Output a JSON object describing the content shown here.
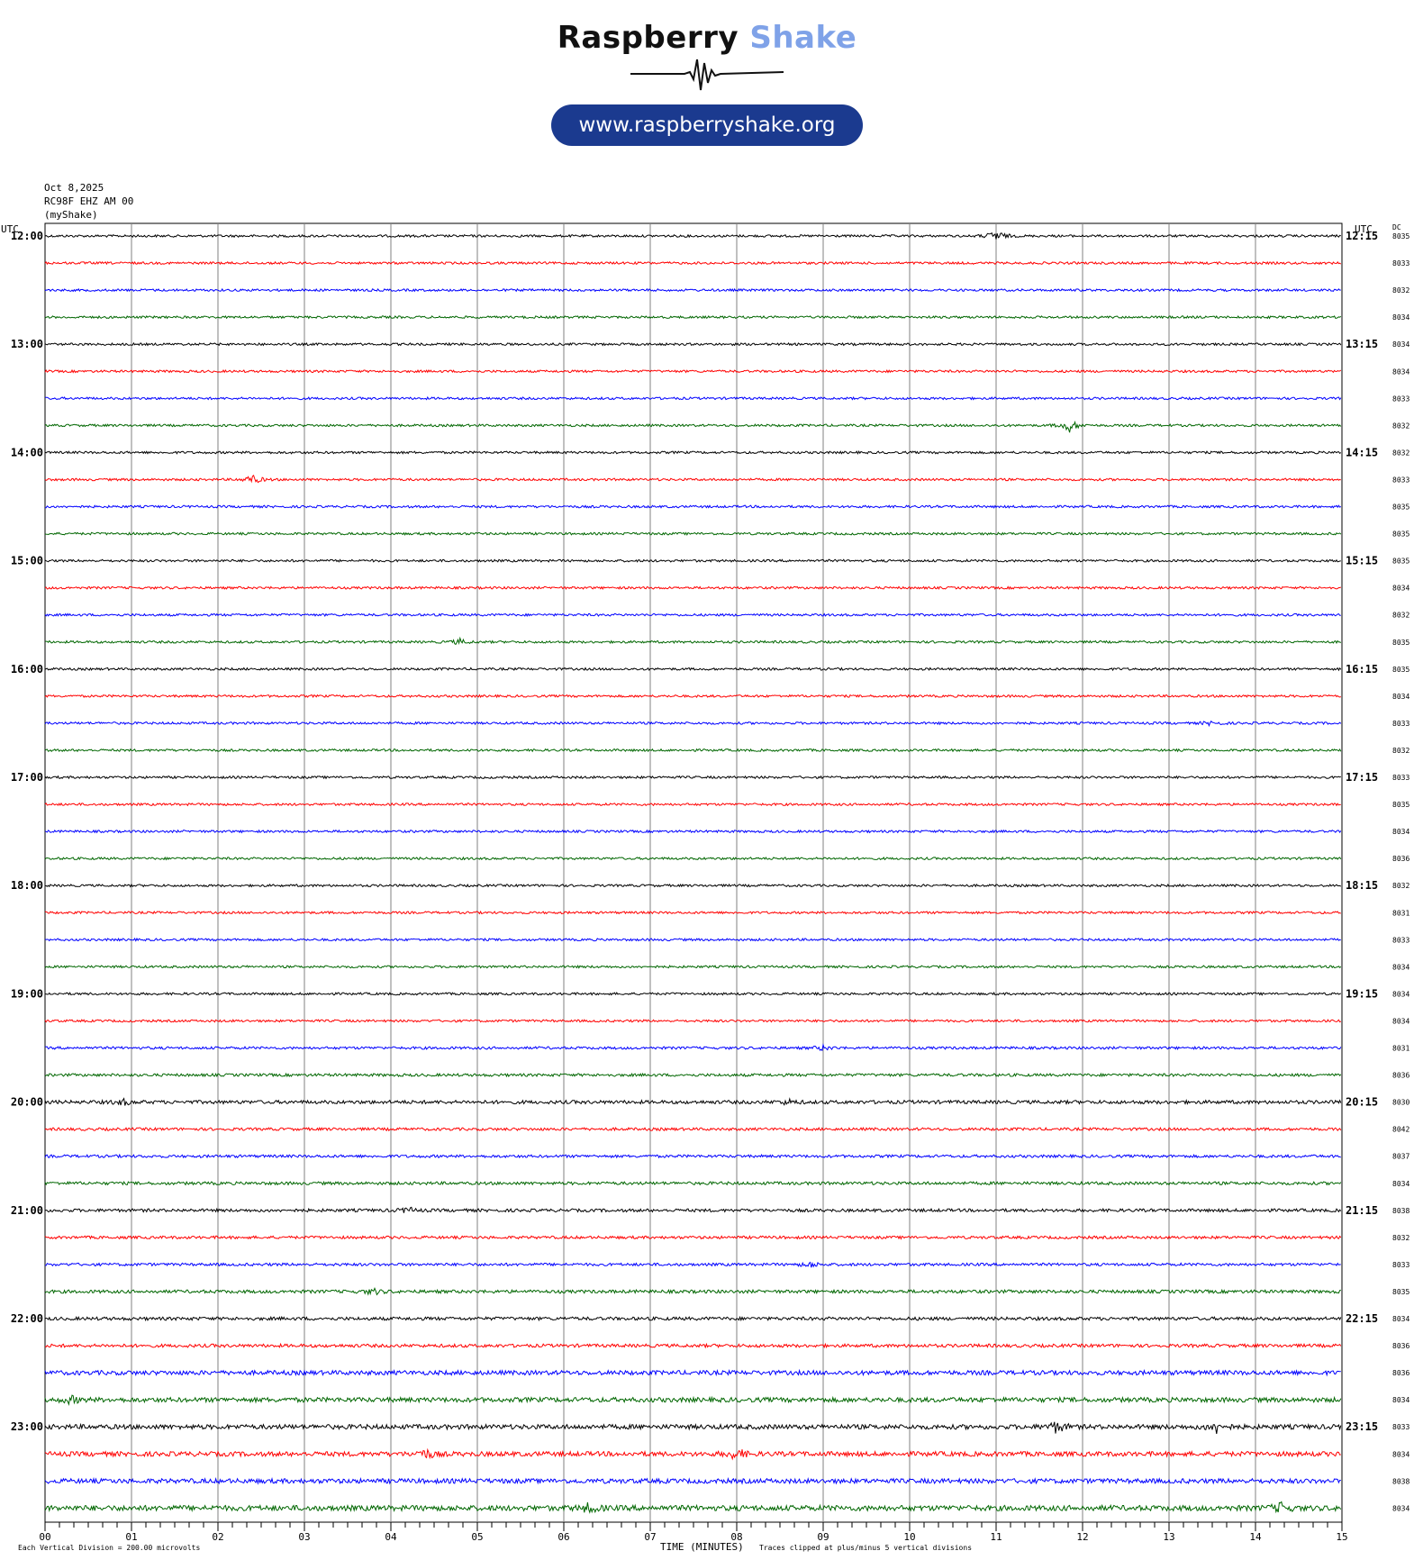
{
  "logo": {
    "brand_1": "Raspberry",
    "brand_2": "Shake",
    "url": "www.raspberryshake.org",
    "colors": {
      "brand_dark": "#111111",
      "brand_light": "#7fa2e8",
      "pill": "#1b3a8f"
    }
  },
  "header": {
    "date": "Oct 8,2025",
    "station": "RC98F EHZ AM 00",
    "network": "(myShake)"
  },
  "chart_data": {
    "type": "line",
    "description_type": "helicorder",
    "left_axis_label": "UTC",
    "right_axis_label": "UTC",
    "dc_label": "DC",
    "xlabel": "TIME (MINUTES)",
    "x_ticks": [
      "00",
      "01",
      "02",
      "03",
      "04",
      "05",
      "06",
      "07",
      "08",
      "09",
      "10",
      "11",
      "12",
      "13",
      "14",
      "15"
    ],
    "xlim": [
      0,
      15
    ],
    "left_times": [
      "12:00",
      "13:00",
      "14:00",
      "15:00",
      "16:00",
      "17:00",
      "18:00",
      "19:00",
      "20:00",
      "21:00",
      "22:00",
      "23:00"
    ],
    "right_times": [
      "12:15",
      "13:15",
      "14:15",
      "15:15",
      "16:15",
      "17:15",
      "18:15",
      "19:15",
      "20:15",
      "21:15",
      "22:15",
      "23:15"
    ],
    "trace_colors": [
      "#000000",
      "#ff0000",
      "#0000ff",
      "#006600"
    ],
    "dc_values": [
      "8035",
      "8033",
      "8032",
      "8034",
      "8034",
      "8034",
      "8033",
      "8032",
      "8032",
      "8033",
      "8035",
      "8035",
      "8035",
      "8034",
      "8032",
      "8035",
      "8035",
      "8034",
      "8033",
      "8032",
      "8033",
      "8035",
      "8034",
      "8036",
      "8032",
      "8031",
      "8033",
      "8034",
      "8034",
      "8034",
      "8031",
      "8036",
      "8030",
      "8042",
      "8037",
      "8034",
      "8038",
      "8032",
      "8033",
      "8035",
      "8034",
      "8036",
      "8036",
      "8034",
      "8033",
      "8034",
      "8038",
      "8034"
    ],
    "noise_level": [
      1.0,
      1.0,
      1.0,
      1.0,
      1.0,
      1.0,
      1.0,
      1.0,
      1.0,
      1.0,
      1.0,
      1.0,
      1.0,
      1.0,
      1.0,
      1.0,
      1.0,
      1.0,
      1.0,
      1.0,
      1.0,
      1.0,
      1.0,
      1.0,
      1.0,
      1.0,
      1.0,
      1.0,
      1.0,
      1.0,
      1.1,
      1.2,
      1.5,
      1.2,
      1.2,
      1.3,
      1.3,
      1.2,
      1.2,
      1.4,
      1.4,
      1.4,
      1.9,
      2.0,
      2.0,
      2.0,
      2.0,
      2.3
    ],
    "events": [
      {
        "row": 0,
        "minute": 11.0,
        "amp": 6
      },
      {
        "row": 7,
        "minute": 11.85,
        "amp": 7
      },
      {
        "row": 9,
        "minute": 2.4,
        "amp": 5
      },
      {
        "row": 15,
        "minute": 4.8,
        "amp": 3
      },
      {
        "row": 18,
        "minute": 13.5,
        "amp": 2.5
      },
      {
        "row": 30,
        "minute": 9.0,
        "amp": 2.5
      },
      {
        "row": 32,
        "minute": 0.9,
        "amp": 3
      },
      {
        "row": 32,
        "minute": 8.6,
        "amp": 2.5
      },
      {
        "row": 36,
        "minute": 4.2,
        "amp": 3
      },
      {
        "row": 38,
        "minute": 8.85,
        "amp": 3
      },
      {
        "row": 39,
        "minute": 3.8,
        "amp": 3
      },
      {
        "row": 43,
        "minute": 0.3,
        "amp": 3.5
      },
      {
        "row": 44,
        "minute": 11.7,
        "amp": 6
      },
      {
        "row": 44,
        "minute": 13.55,
        "amp": 6
      },
      {
        "row": 45,
        "minute": 4.4,
        "amp": 5
      },
      {
        "row": 45,
        "minute": 8.0,
        "amp": 6
      },
      {
        "row": 47,
        "minute": 6.3,
        "amp": 5
      },
      {
        "row": 47,
        "minute": 14.3,
        "amp": 5
      }
    ],
    "footer_left": "Each Vertical Division = 200.00 microvolts",
    "footer_right": "Traces clipped at plus/minus 5 vertical divisions"
  }
}
